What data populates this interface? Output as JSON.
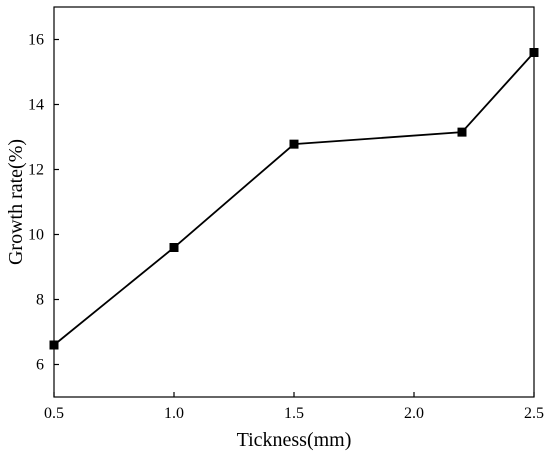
{
  "chart_data": {
    "type": "line",
    "title": "",
    "xlabel": "Tickness(mm)",
    "ylabel": "Growth rate(%)",
    "x": [
      0.5,
      1.0,
      1.5,
      2.2,
      2.5
    ],
    "series": [
      {
        "values": [
          6.6,
          9.6,
          12.78,
          13.15,
          15.6
        ],
        "marker": "square",
        "color": "#000000"
      }
    ],
    "xlim": [
      0.5,
      2.5
    ],
    "ylim": [
      5.0,
      17.0
    ],
    "xticks": [
      0.5,
      1.0,
      1.5,
      2.0,
      2.5
    ],
    "xtick_labels": [
      "0.5",
      "1.0",
      "1.5",
      "2.0",
      "2.5"
    ],
    "yticks": [
      6,
      8,
      10,
      12,
      14,
      16
    ],
    "ytick_labels": [
      "6",
      "8",
      "10",
      "12",
      "14",
      "16"
    ],
    "grid": false,
    "legend": "none"
  }
}
